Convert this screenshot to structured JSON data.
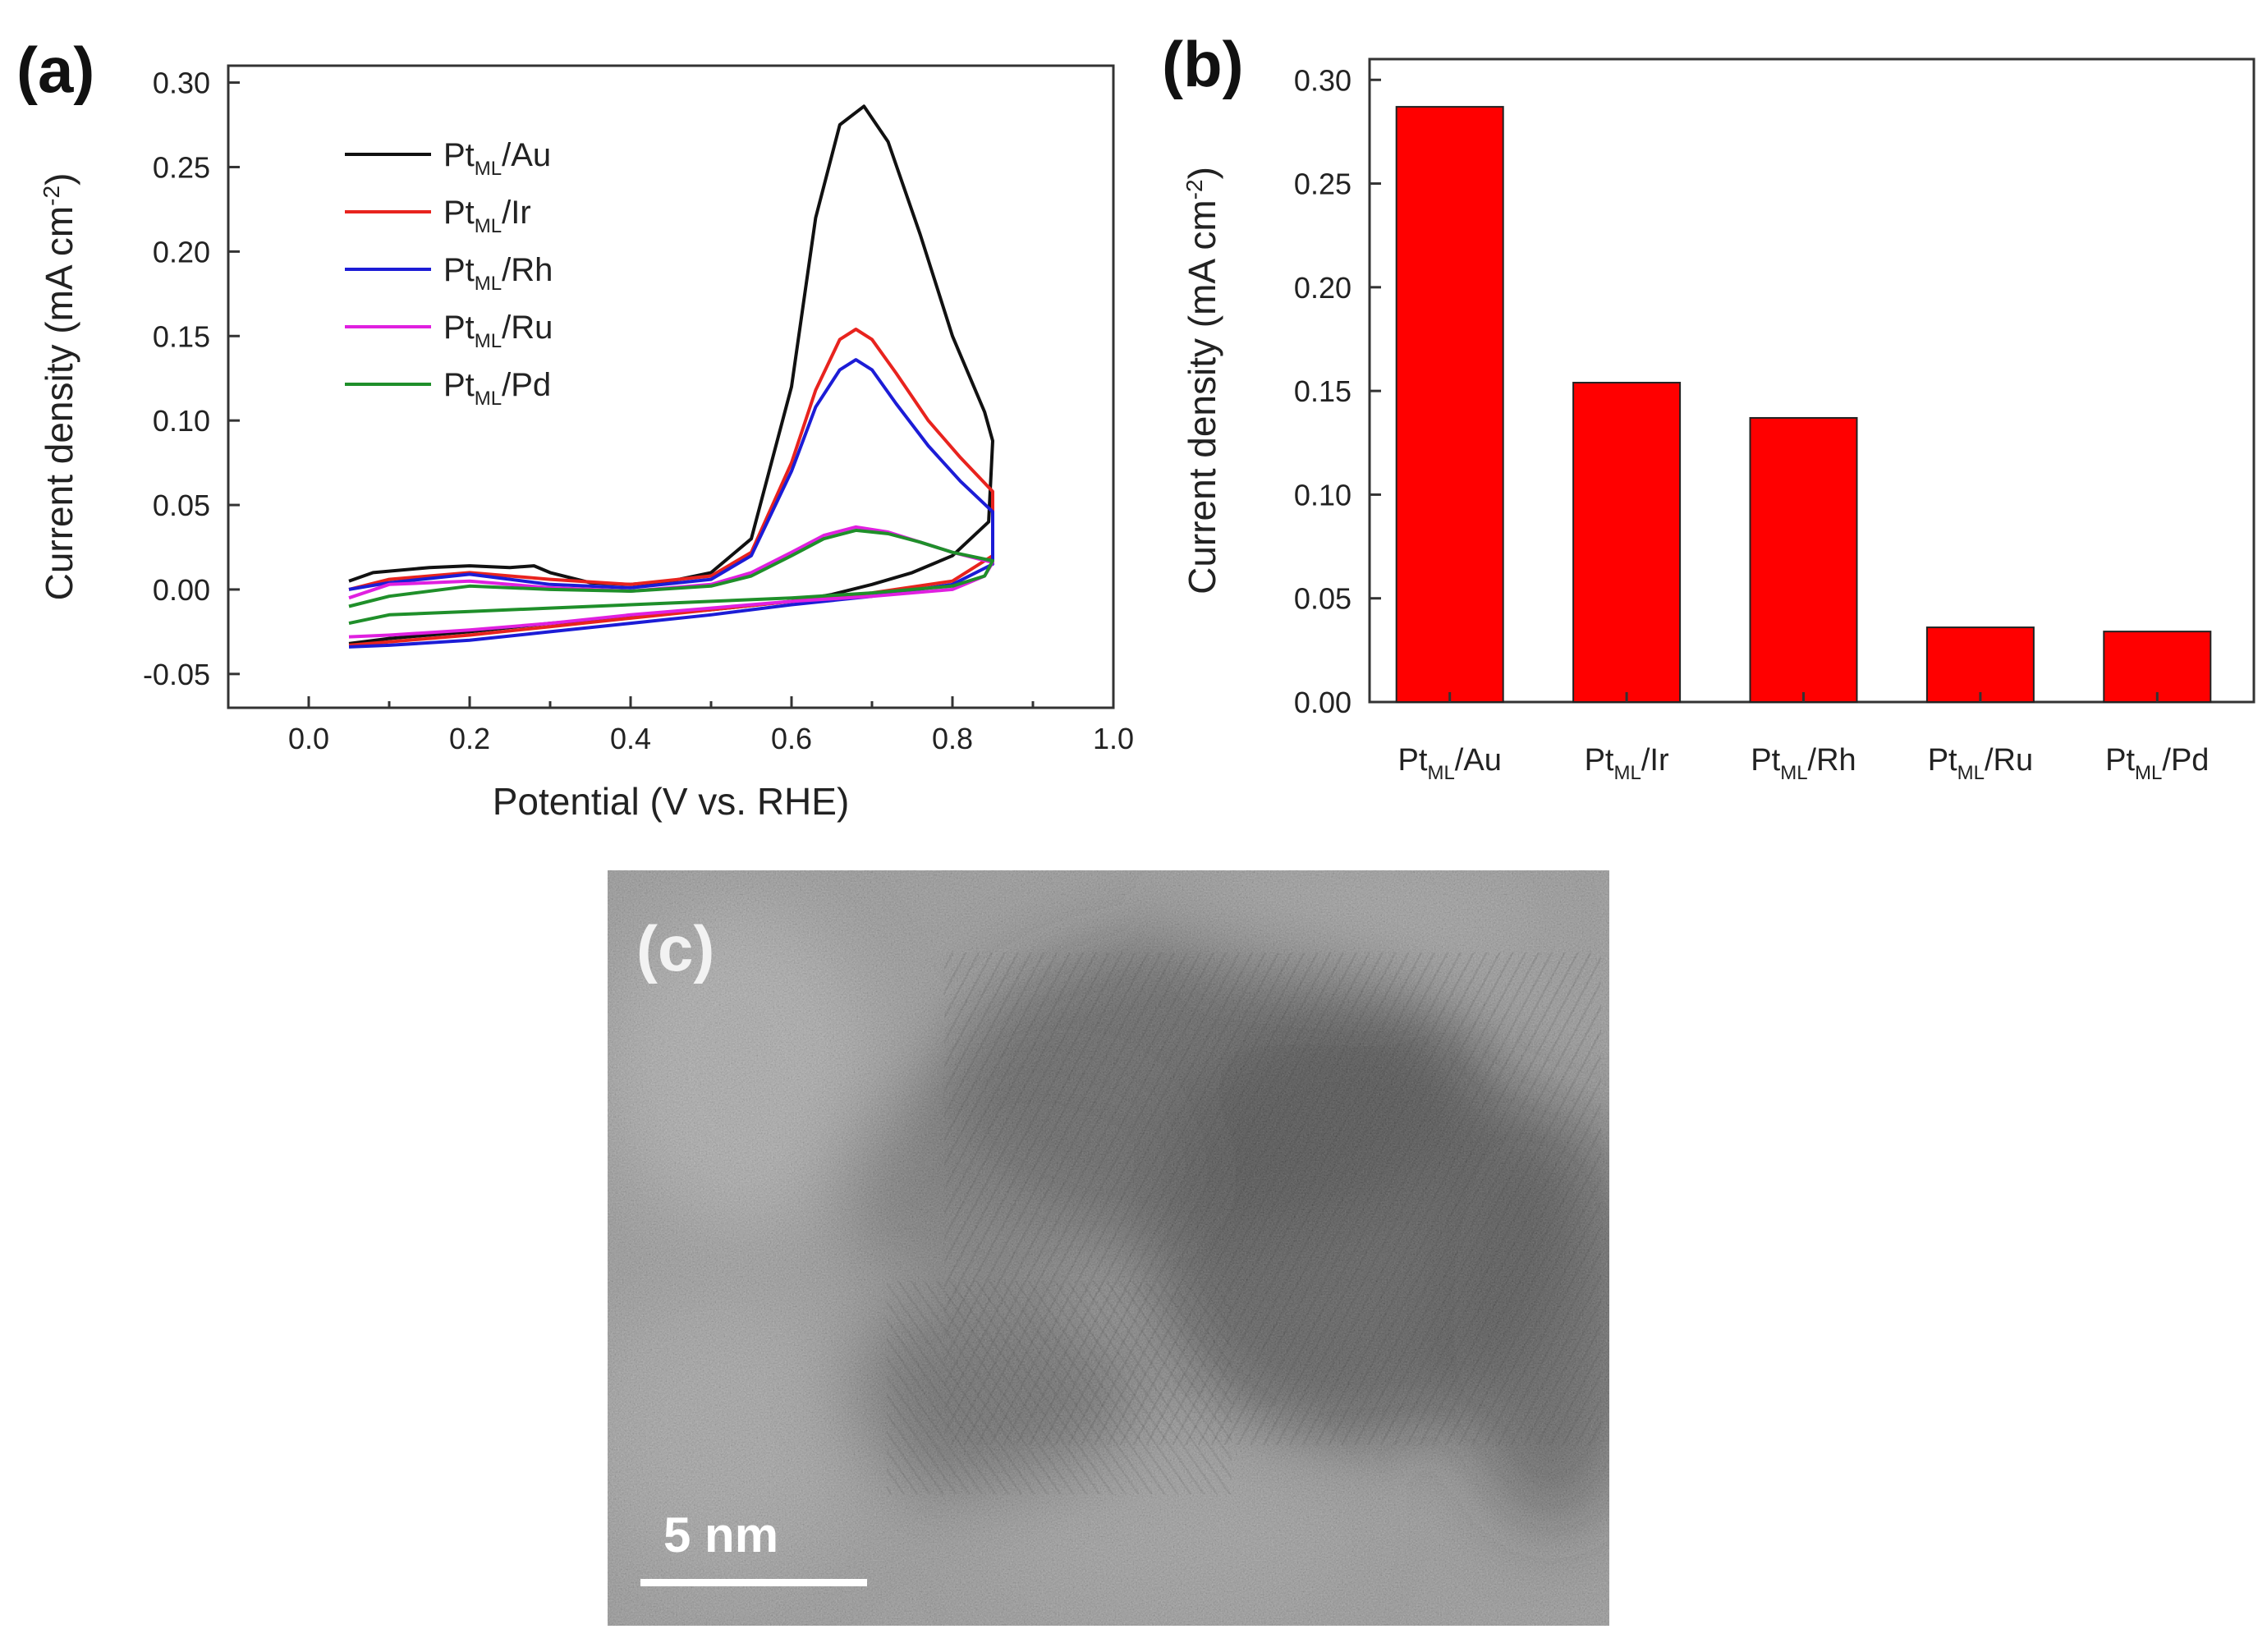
{
  "panels": {
    "a": {
      "label": "(a)"
    },
    "b": {
      "label": "(b)"
    },
    "c": {
      "label": "(c)",
      "scale_bar": "5 nm"
    }
  },
  "chart_data": [
    {
      "panel": "a",
      "type": "line",
      "title": "",
      "xlabel": "Potential (V vs. RHE)",
      "ylabel": "Current density (mA cm",
      "ylabel_sup": "-2",
      "ylabel_close": ")",
      "xlim": [
        -0.1,
        1.0
      ],
      "ylim": [
        -0.07,
        0.31
      ],
      "xticks": [
        0.0,
        0.2,
        0.4,
        0.6,
        0.8,
        1.0
      ],
      "xtick_labels": [
        "0.0",
        "0.2",
        "0.4",
        "0.6",
        "0.8",
        "1.0"
      ],
      "yticks": [
        -0.05,
        0.0,
        0.05,
        0.1,
        0.15,
        0.2,
        0.25,
        0.3
      ],
      "ytick_labels": [
        "-0.05",
        "0.00",
        "0.05",
        "0.10",
        "0.15",
        "0.20",
        "0.25",
        "0.30"
      ],
      "legend_position": "top-left",
      "series": [
        {
          "name": "Pt",
          "sub": "ML",
          "suffix": "/Au",
          "color": "#111111",
          "anodic": [
            [
              0.05,
              0.005
            ],
            [
              0.08,
              0.01
            ],
            [
              0.15,
              0.013
            ],
            [
              0.2,
              0.014
            ],
            [
              0.25,
              0.013
            ],
            [
              0.28,
              0.014
            ],
            [
              0.3,
              0.01
            ],
            [
              0.35,
              0.004
            ],
            [
              0.4,
              0.003
            ],
            [
              0.45,
              0.005
            ],
            [
              0.5,
              0.01
            ],
            [
              0.55,
              0.03
            ],
            [
              0.6,
              0.12
            ],
            [
              0.63,
              0.22
            ],
            [
              0.66,
              0.275
            ],
            [
              0.69,
              0.286
            ],
            [
              0.72,
              0.265
            ],
            [
              0.76,
              0.21
            ],
            [
              0.8,
              0.15
            ],
            [
              0.84,
              0.105
            ],
            [
              0.85,
              0.088
            ]
          ],
          "cathodic": [
            [
              0.85,
              0.088
            ],
            [
              0.845,
              0.04
            ],
            [
              0.8,
              0.02
            ],
            [
              0.75,
              0.01
            ],
            [
              0.7,
              0.003
            ],
            [
              0.65,
              -0.003
            ],
            [
              0.6,
              -0.007
            ],
            [
              0.5,
              -0.012
            ],
            [
              0.4,
              -0.016
            ],
            [
              0.3,
              -0.02
            ],
            [
              0.2,
              -0.025
            ],
            [
              0.1,
              -0.029
            ],
            [
              0.05,
              -0.032
            ]
          ]
        },
        {
          "name": "Pt",
          "sub": "ML",
          "suffix": "/Ir",
          "color": "#e8231e",
          "anodic": [
            [
              0.05,
              0.0
            ],
            [
              0.1,
              0.006
            ],
            [
              0.2,
              0.01
            ],
            [
              0.3,
              0.006
            ],
            [
              0.4,
              0.003
            ],
            [
              0.5,
              0.008
            ],
            [
              0.55,
              0.022
            ],
            [
              0.6,
              0.075
            ],
            [
              0.63,
              0.118
            ],
            [
              0.66,
              0.148
            ],
            [
              0.68,
              0.154
            ],
            [
              0.7,
              0.148
            ],
            [
              0.73,
              0.128
            ],
            [
              0.77,
              0.1
            ],
            [
              0.81,
              0.078
            ],
            [
              0.85,
              0.058
            ]
          ],
          "cathodic": [
            [
              0.85,
              0.058
            ],
            [
              0.85,
              0.02
            ],
            [
              0.8,
              0.005
            ],
            [
              0.7,
              -0.002
            ],
            [
              0.6,
              -0.007
            ],
            [
              0.5,
              -0.012
            ],
            [
              0.4,
              -0.017
            ],
            [
              0.3,
              -0.022
            ],
            [
              0.2,
              -0.027
            ],
            [
              0.1,
              -0.031
            ],
            [
              0.05,
              -0.033
            ]
          ]
        },
        {
          "name": "Pt",
          "sub": "ML",
          "suffix": "/Rh",
          "color": "#1c1cd6",
          "anodic": [
            [
              0.05,
              0.0
            ],
            [
              0.1,
              0.004
            ],
            [
              0.2,
              0.009
            ],
            [
              0.3,
              0.003
            ],
            [
              0.4,
              0.001
            ],
            [
              0.5,
              0.006
            ],
            [
              0.55,
              0.02
            ],
            [
              0.6,
              0.07
            ],
            [
              0.63,
              0.108
            ],
            [
              0.66,
              0.13
            ],
            [
              0.68,
              0.136
            ],
            [
              0.7,
              0.13
            ],
            [
              0.73,
              0.11
            ],
            [
              0.77,
              0.085
            ],
            [
              0.81,
              0.064
            ],
            [
              0.85,
              0.046
            ]
          ],
          "cathodic": [
            [
              0.85,
              0.046
            ],
            [
              0.85,
              0.015
            ],
            [
              0.8,
              0.003
            ],
            [
              0.7,
              -0.004
            ],
            [
              0.6,
              -0.009
            ],
            [
              0.5,
              -0.015
            ],
            [
              0.4,
              -0.02
            ],
            [
              0.3,
              -0.025
            ],
            [
              0.2,
              -0.03
            ],
            [
              0.1,
              -0.033
            ],
            [
              0.05,
              -0.034
            ]
          ]
        },
        {
          "name": "Pt",
          "sub": "ML",
          "suffix": "/Ru",
          "color": "#e020e0",
          "anodic": [
            [
              0.05,
              -0.005
            ],
            [
              0.1,
              0.003
            ],
            [
              0.2,
              0.005
            ],
            [
              0.3,
              0.001
            ],
            [
              0.4,
              -0.001
            ],
            [
              0.5,
              0.003
            ],
            [
              0.55,
              0.01
            ],
            [
              0.6,
              0.022
            ],
            [
              0.64,
              0.032
            ],
            [
              0.68,
              0.037
            ],
            [
              0.72,
              0.034
            ],
            [
              0.76,
              0.028
            ],
            [
              0.8,
              0.022
            ],
            [
              0.85,
              0.016
            ]
          ],
          "cathodic": [
            [
              0.85,
              0.016
            ],
            [
              0.84,
              0.008
            ],
            [
              0.8,
              0.0
            ],
            [
              0.7,
              -0.004
            ],
            [
              0.6,
              -0.007
            ],
            [
              0.5,
              -0.011
            ],
            [
              0.4,
              -0.015
            ],
            [
              0.3,
              -0.02
            ],
            [
              0.2,
              -0.024
            ],
            [
              0.1,
              -0.027
            ],
            [
              0.05,
              -0.028
            ]
          ]
        },
        {
          "name": "Pt",
          "sub": "ML",
          "suffix": "/Pd",
          "color": "#1f8f2a",
          "anodic": [
            [
              0.05,
              -0.01
            ],
            [
              0.1,
              -0.004
            ],
            [
              0.2,
              0.002
            ],
            [
              0.3,
              0.0
            ],
            [
              0.4,
              -0.001
            ],
            [
              0.5,
              0.002
            ],
            [
              0.55,
              0.008
            ],
            [
              0.6,
              0.02
            ],
            [
              0.64,
              0.03
            ],
            [
              0.68,
              0.035
            ],
            [
              0.72,
              0.033
            ],
            [
              0.76,
              0.028
            ],
            [
              0.8,
              0.022
            ],
            [
              0.85,
              0.017
            ]
          ],
          "cathodic": [
            [
              0.85,
              0.017
            ],
            [
              0.84,
              0.008
            ],
            [
              0.8,
              0.002
            ],
            [
              0.7,
              -0.002
            ],
            [
              0.6,
              -0.005
            ],
            [
              0.5,
              -0.007
            ],
            [
              0.4,
              -0.009
            ],
            [
              0.3,
              -0.011
            ],
            [
              0.2,
              -0.013
            ],
            [
              0.1,
              -0.015
            ],
            [
              0.05,
              -0.02
            ]
          ]
        }
      ]
    },
    {
      "panel": "b",
      "type": "bar",
      "title": "",
      "xlabel": "",
      "ylabel": "Current density (mA cm",
      "ylabel_sup": "-2",
      "ylabel_close": ")",
      "ylim": [
        0.0,
        0.31
      ],
      "yticks": [
        0.0,
        0.05,
        0.1,
        0.15,
        0.2,
        0.25,
        0.3
      ],
      "ytick_labels": [
        "0.00",
        "0.05",
        "0.10",
        "0.15",
        "0.20",
        "0.25",
        "0.30"
      ],
      "bar_color": "#ff0000",
      "categories": [
        {
          "name": "Pt",
          "sub": "ML",
          "suffix": "/Au"
        },
        {
          "name": "Pt",
          "sub": "ML",
          "suffix": "/Ir"
        },
        {
          "name": "Pt",
          "sub": "ML",
          "suffix": "/Rh"
        },
        {
          "name": "Pt",
          "sub": "ML",
          "suffix": "/Ru"
        },
        {
          "name": "Pt",
          "sub": "ML",
          "suffix": "/Pd"
        }
      ],
      "values": [
        0.287,
        0.154,
        0.137,
        0.036,
        0.034
      ]
    }
  ]
}
